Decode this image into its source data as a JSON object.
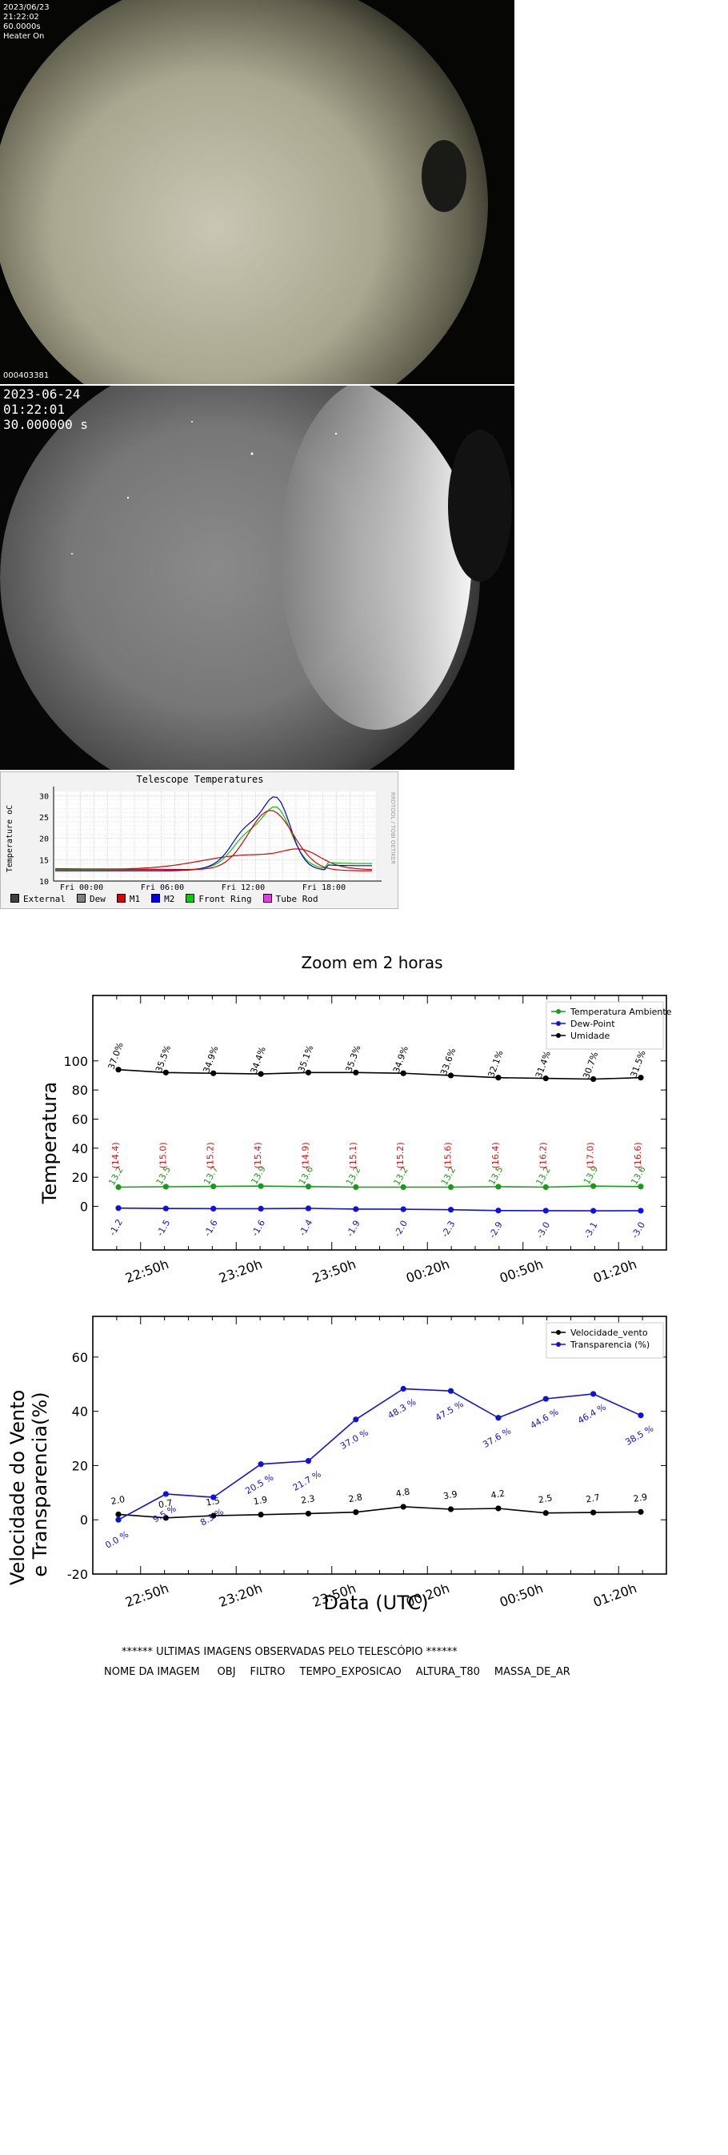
{
  "camera1": {
    "date": "2023/06/23",
    "time": "21:22:02",
    "exposure": "60.0000s",
    "heater": "Heater On",
    "frame_id": "000403381"
  },
  "camera2": {
    "date": "2023-06-24",
    "time": "01:22:01",
    "exposure": "30.000000 s"
  },
  "telescope_temps": {
    "title": "Telescope Temperatures",
    "ylabel": "Temperature oC",
    "watermark": "RRDTOOL / TOBI OETIKER",
    "y_ticks": [
      "30",
      "25",
      "20",
      "15",
      "10"
    ],
    "x_ticks": [
      "Fri 00:00",
      "Fri 06:00",
      "Fri 12:00",
      "Fri 18:00"
    ],
    "legend": [
      {
        "label": "External",
        "color": "#404040"
      },
      {
        "label": "Dew",
        "color": "#808080"
      },
      {
        "label": "M1",
        "color": "#e00000"
      },
      {
        "label": "M2",
        "color": "#0000e0"
      },
      {
        "label": "Front Ring",
        "color": "#00d000"
      },
      {
        "label": "Tube Rod",
        "color": "#e040e0"
      }
    ],
    "colors": {
      "m1": "#e00000",
      "m2": "#0000e0",
      "front_ring": "#00d000",
      "external": "#404040"
    }
  },
  "chart_data": [
    {
      "type": "line",
      "title": "Zoom em 2 horas",
      "ylabel": "Temperatura",
      "xlabel": "",
      "ylim": [
        -30,
        145
      ],
      "y_ticks": [
        0,
        20,
        40,
        60,
        80,
        100
      ],
      "x_ticks": [
        "22:50h",
        "23:20h",
        "23:50h",
        "00:20h",
        "00:50h",
        "01:20h"
      ],
      "legend_position": "top-right",
      "series": [
        {
          "name": "Temperatura Ambiente",
          "color": "#1a9a1a",
          "values": [
            13.2,
            13.5,
            13.7,
            13.9,
            13.6,
            13.2,
            13.2,
            13.2,
            13.5,
            13.2,
            13.9,
            13.6
          ],
          "labels": [
            "13.2",
            "13.5",
            "13.7",
            "13.9",
            "13.6",
            "13.2",
            "13.2",
            "13.2",
            "13.5",
            "13.2",
            "13.9",
            "13.6"
          ]
        },
        {
          "name": "Dew-Point",
          "color": "#1010e0",
          "values": [
            -1.2,
            -1.5,
            -1.6,
            -1.6,
            -1.4,
            -1.9,
            -2.0,
            -2.3,
            -2.9,
            -3.0,
            -3.1,
            -3.0
          ],
          "labels": [
            "-1.2",
            "-1.5",
            "-1.6",
            "-1.6",
            "-1.4",
            "-1.9",
            "-2.0",
            "-2.3",
            "-2.9",
            "-3.0",
            "-3.1",
            "-3.0"
          ]
        },
        {
          "name": "Umidade",
          "color": "#000000",
          "values": [
            94,
            92,
            91.5,
            91,
            92,
            92,
            91.5,
            90,
            88.5,
            88,
            87.5,
            88.5
          ],
          "labels": [
            "37.0%",
            "35.5%",
            "34.9%",
            "34.4%",
            "35.1%",
            "35.3%",
            "34.9%",
            "33.6%",
            "32.1%",
            "31.4%",
            "30.7%",
            "31.5%"
          ]
        }
      ],
      "extra_labels": {
        "color": "#e01010",
        "y": 35,
        "labels": [
          "(14.4)",
          "(15.0)",
          "(15.2)",
          "(15.4)",
          "(14.9)",
          "(15.1)",
          "(15.2)",
          "(15.6)",
          "(16.4)",
          "(16.2)",
          "(17.0)",
          "(16.6)"
        ]
      }
    },
    {
      "type": "line",
      "ylabel": "Velocidade do Vento\ne Transparencia(%)",
      "xlabel": "Data (UTC)",
      "ylim": [
        -20,
        75
      ],
      "y_ticks": [
        -20,
        0,
        20,
        40,
        60
      ],
      "x_ticks": [
        "22:50h",
        "23:20h",
        "23:50h",
        "00:20h",
        "00:50h",
        "01:20h"
      ],
      "legend_position": "top-right",
      "series": [
        {
          "name": "Velocidade_vento",
          "color": "#000000",
          "values": [
            2.0,
            0.7,
            1.5,
            1.9,
            2.3,
            2.8,
            4.8,
            3.9,
            4.2,
            2.5,
            2.7,
            2.9
          ],
          "labels": [
            "2.0",
            "0.7",
            "1.5",
            "1.9",
            "2.3",
            "2.8",
            "4.8",
            "3.9",
            "4.2",
            "2.5",
            "2.7",
            "2.9"
          ]
        },
        {
          "name": "Transparencia (%)",
          "color": "#1010e0",
          "values": [
            0.0,
            9.5,
            8.3,
            20.5,
            21.7,
            37.0,
            48.3,
            47.5,
            37.6,
            44.6,
            46.4,
            38.5
          ],
          "labels": [
            "0.0 %",
            "9.5 %",
            "8.3 %",
            "20.5 %",
            "21.7 %",
            "37.0 %",
            "48.3 %",
            "47.5 %",
            "37.6 %",
            "44.6 %",
            "46.4 %",
            "38.5 %"
          ]
        }
      ]
    }
  ],
  "observations": {
    "heading": "****** ULTIMAS IMAGENS OBSERVADAS PELO TELESCÓPIO ******",
    "columns": [
      "NOME DA IMAGEM",
      "OBJ",
      "FILTRO",
      "TEMPO_EXPOSICAO",
      "ALTURA_T80",
      "MASSA_DE_AR"
    ]
  }
}
